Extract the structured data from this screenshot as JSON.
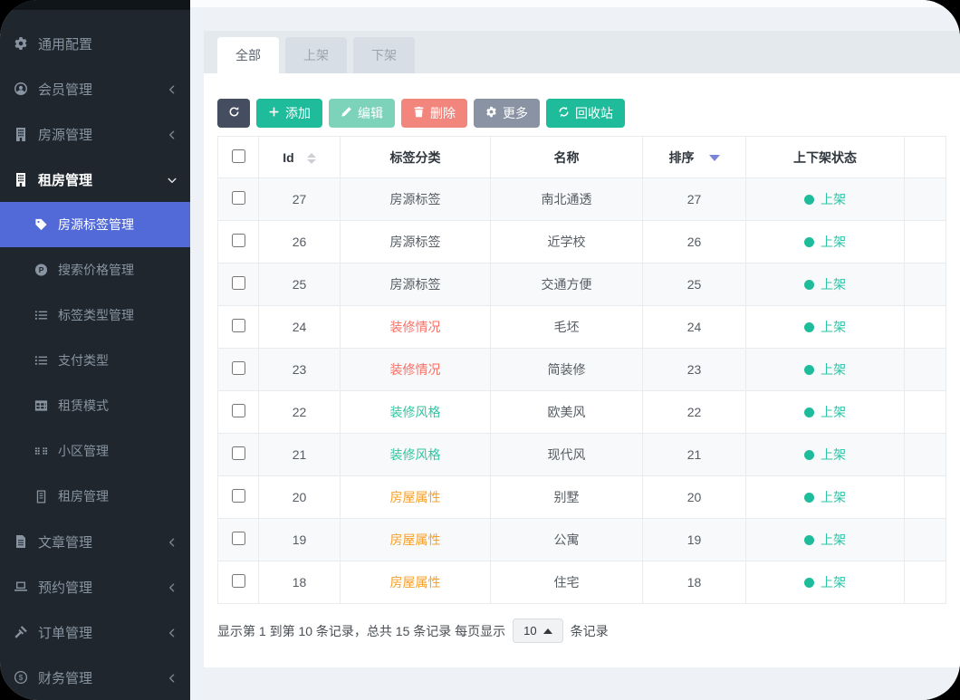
{
  "sidebar": {
    "items": [
      {
        "label": "通用配置",
        "icon": "gear",
        "level": "top",
        "chevron": ""
      },
      {
        "label": "会员管理",
        "icon": "user",
        "level": "top",
        "chevron": "left"
      },
      {
        "label": "房源管理",
        "icon": "building",
        "level": "top",
        "chevron": "left"
      },
      {
        "label": "租房管理",
        "icon": "building",
        "level": "top",
        "chevron": "down",
        "state": "expanded"
      },
      {
        "label": "房源标签管理",
        "icon": "tag",
        "level": "sub",
        "state": "active"
      },
      {
        "label": "搜索价格管理",
        "icon": "p-circle",
        "level": "sub"
      },
      {
        "label": "标签类型管理",
        "icon": "list",
        "level": "sub"
      },
      {
        "label": "支付类型",
        "icon": "list",
        "level": "sub"
      },
      {
        "label": "租赁模式",
        "icon": "table",
        "level": "sub"
      },
      {
        "label": "小区管理",
        "icon": "blocks",
        "level": "sub"
      },
      {
        "label": "租房管理",
        "icon": "building2",
        "level": "sub"
      },
      {
        "label": "文章管理",
        "icon": "doc",
        "level": "top",
        "chevron": "left"
      },
      {
        "label": "预约管理",
        "icon": "laptop",
        "level": "top",
        "chevron": "left"
      },
      {
        "label": "订单管理",
        "icon": "gavel",
        "level": "top",
        "chevron": "left"
      },
      {
        "label": "财务管理",
        "icon": "money",
        "level": "top",
        "chevron": "left"
      }
    ]
  },
  "tabs": [
    {
      "label": "全部",
      "active": true
    },
    {
      "label": "上架",
      "active": false
    },
    {
      "label": "下架",
      "active": false
    }
  ],
  "toolbar": {
    "add_label": "添加",
    "edit_label": "编辑",
    "delete_label": "删除",
    "more_label": "更多",
    "recycle_label": "回收站"
  },
  "table": {
    "headers": {
      "id": "Id",
      "category": "标签分类",
      "name": "名称",
      "order": "排序",
      "status": "上下架状态"
    },
    "rows": [
      {
        "id": "27",
        "category": "房源标签",
        "color": "default",
        "name": "南北通透",
        "order": "27",
        "status": "上架"
      },
      {
        "id": "26",
        "category": "房源标签",
        "color": "default",
        "name": "近学校",
        "order": "26",
        "status": "上架"
      },
      {
        "id": "25",
        "category": "房源标签",
        "color": "default",
        "name": "交通方便",
        "order": "25",
        "status": "上架"
      },
      {
        "id": "24",
        "category": "装修情况",
        "color": "red",
        "name": "毛坯",
        "order": "24",
        "status": "上架"
      },
      {
        "id": "23",
        "category": "装修情况",
        "color": "red",
        "name": "简装修",
        "order": "23",
        "status": "上架"
      },
      {
        "id": "22",
        "category": "装修风格",
        "color": "teal",
        "name": "欧美风",
        "order": "22",
        "status": "上架"
      },
      {
        "id": "21",
        "category": "装修风格",
        "color": "teal",
        "name": "现代风",
        "order": "21",
        "status": "上架"
      },
      {
        "id": "20",
        "category": "房屋属性",
        "color": "orange",
        "name": "别墅",
        "order": "20",
        "status": "上架"
      },
      {
        "id": "19",
        "category": "房屋属性",
        "color": "orange",
        "name": "公寓",
        "order": "19",
        "status": "上架"
      },
      {
        "id": "18",
        "category": "房屋属性",
        "color": "orange",
        "name": "住宅",
        "order": "18",
        "status": "上架"
      }
    ]
  },
  "pagination": {
    "text_before": "显示第 1 到第 10 条记录，总共 15 条记录 每页显示",
    "page_size": "10",
    "text_after": "条记录"
  },
  "colors": {
    "accent_green": "#1fbc9c",
    "active_blue": "#5269d8",
    "sidebar_bg": "#1f262d",
    "category_red": "#fa6e64",
    "category_teal": "#30c6a2",
    "category_orange": "#f5a02b",
    "status_text": "#2dc3a4",
    "sort_caret_blue": "#7a85d6"
  }
}
